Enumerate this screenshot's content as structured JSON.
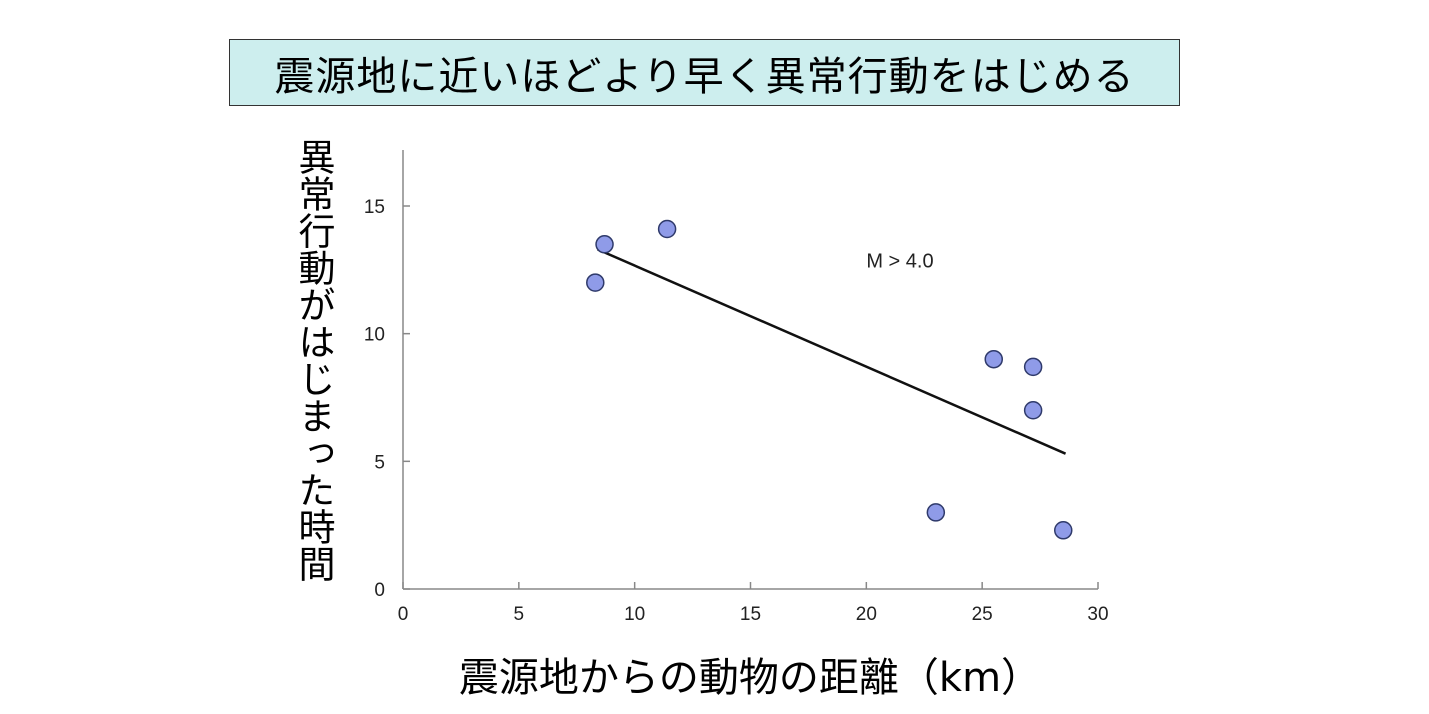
{
  "chart_data": {
    "type": "scatter",
    "title": "震源地に近いほどより早く異常行動をはじめる",
    "xlabel": "震源地からの動物の距離（km）",
    "ylabel": "異常行動がはじまった時間",
    "xlim": [
      0,
      30
    ],
    "ylim": [
      0,
      17
    ],
    "x_ticks": [
      0,
      5,
      10,
      15,
      20,
      25,
      30
    ],
    "y_ticks": [
      0,
      5,
      10,
      15
    ],
    "grid": false,
    "points": [
      {
        "x": 8.3,
        "y": 12.0
      },
      {
        "x": 8.7,
        "y": 13.5
      },
      {
        "x": 11.4,
        "y": 14.1
      },
      {
        "x": 23.0,
        "y": 3.0
      },
      {
        "x": 25.5,
        "y": 9.0
      },
      {
        "x": 27.2,
        "y": 8.7
      },
      {
        "x": 27.2,
        "y": 7.0
      },
      {
        "x": 28.5,
        "y": 2.3
      }
    ],
    "trendline": {
      "x": [
        8.4,
        28.6
      ],
      "y": [
        13.3,
        5.3
      ]
    },
    "annotation": "M > 4.0",
    "colors": {
      "point_fill": "#8f9be8",
      "point_stroke": "#2f3a6b",
      "line": "#111111",
      "axis": "#888888"
    }
  }
}
